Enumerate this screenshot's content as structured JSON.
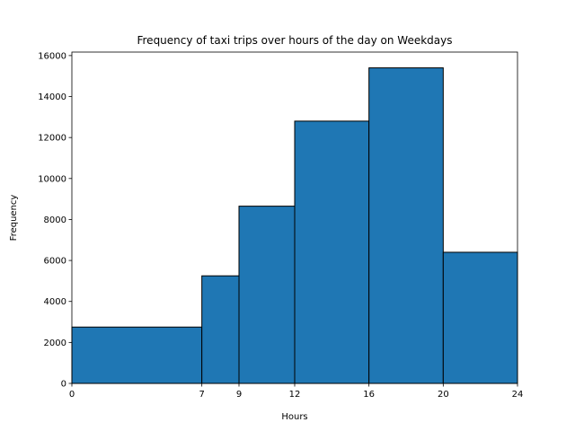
{
  "chart_data": {
    "type": "bar",
    "title": "Frequency of taxi trips over hours of the day on Weekdays",
    "xlabel": "Hours",
    "ylabel": "Frequency",
    "bins": [
      {
        "start": 0,
        "end": 7,
        "value": 2750
      },
      {
        "start": 7,
        "end": 9,
        "value": 5250
      },
      {
        "start": 9,
        "end": 12,
        "value": 8650
      },
      {
        "start": 12,
        "end": 16,
        "value": 12800
      },
      {
        "start": 16,
        "end": 20,
        "value": 15400
      },
      {
        "start": 20,
        "end": 24,
        "value": 6400
      }
    ],
    "xticks": [
      0,
      7,
      9,
      12,
      16,
      20,
      24
    ],
    "xlim": [
      0,
      24
    ],
    "yticks": [
      0,
      2000,
      4000,
      6000,
      8000,
      10000,
      12000,
      14000,
      16000
    ],
    "ylim": [
      0,
      16170
    ],
    "grid": false,
    "bar_color": "#1f77b4",
    "edge_color": "#000000"
  }
}
